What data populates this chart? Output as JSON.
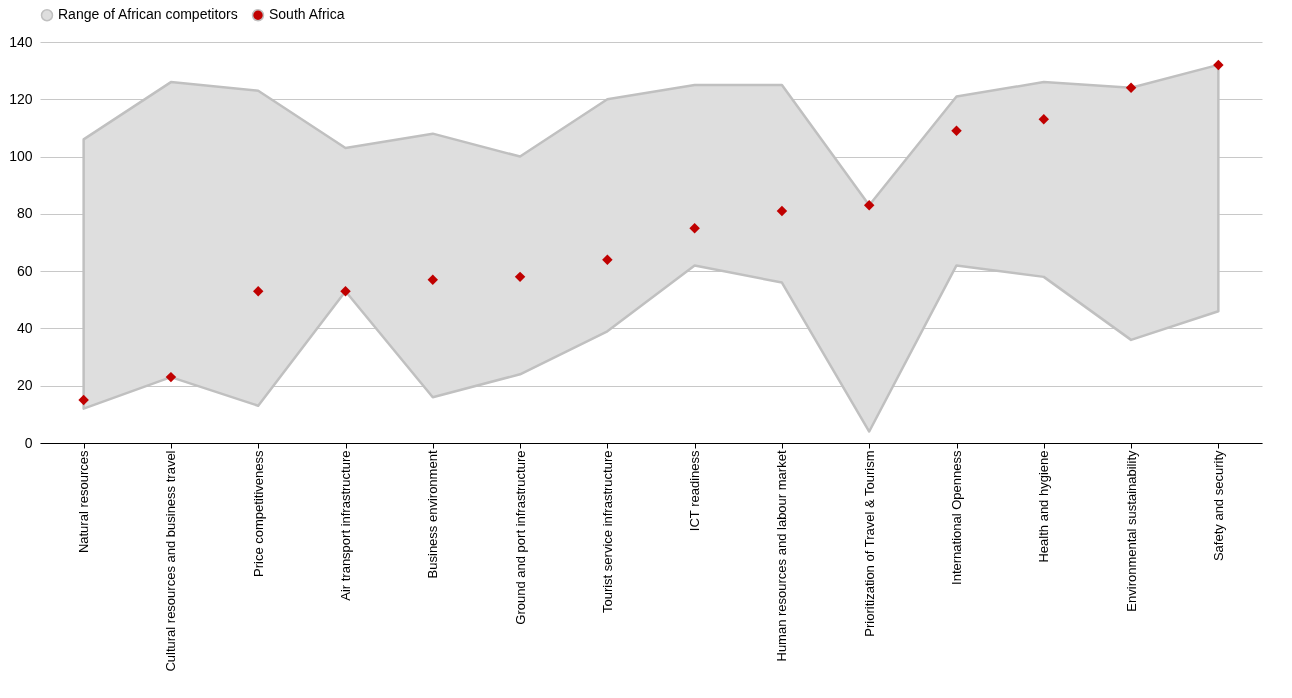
{
  "chart_data": {
    "type": "scatter",
    "categories": [
      "Natural resources",
      "Cultural resources and business travel",
      "Price competitiveness",
      "Air transport infrastructure",
      "Business environment",
      "Ground and port infrastructure",
      "Tourist service infrastructure",
      "ICT readiness",
      "Human resources and labour market",
      "Prioritization of Travel & Tourism",
      "International Openness",
      "Health and hygiene",
      "Environmental sustainability",
      "Safety and security"
    ],
    "series": [
      {
        "name": "Range of African competitors",
        "type": "line",
        "color": "#dedede",
        "values": [
          null,
          null,
          null,
          null,
          null,
          null,
          null,
          null,
          null,
          null,
          null,
          null,
          null,
          null
        ],
        "lower": [
          12,
          23,
          13,
          53,
          16,
          24,
          39,
          62,
          56,
          4,
          62,
          58,
          36,
          46
        ],
        "upper": [
          106,
          126,
          123,
          103,
          108,
          100,
          120,
          125,
          125,
          83,
          121,
          126,
          124,
          132
        ]
      },
      {
        "name": "South Africa",
        "marker": "diamond",
        "color": "#c00000",
        "values": [
          15,
          23,
          53,
          53,
          57,
          58,
          64,
          75,
          81,
          83,
          109,
          113,
          124,
          132
        ]
      }
    ],
    "ylim": [
      0,
      140
    ],
    "yticks": [
      0,
      20,
      40,
      60,
      80,
      100,
      120,
      140
    ],
    "grid": "y",
    "legend": "top"
  }
}
